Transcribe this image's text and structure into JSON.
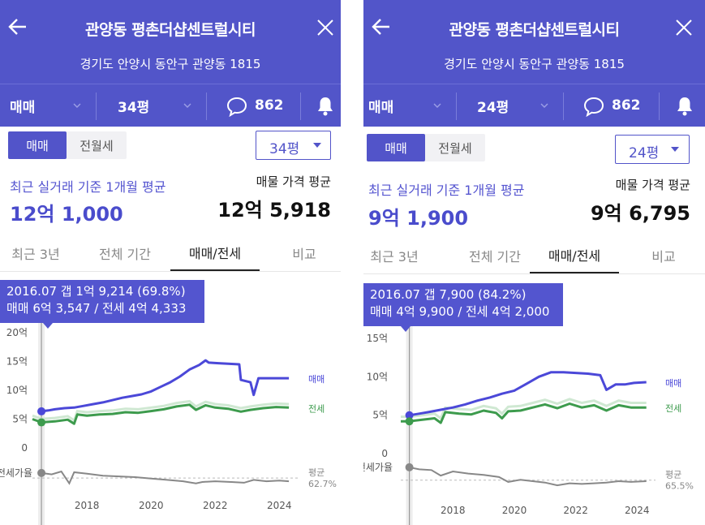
{
  "panels": [
    {
      "header": {
        "title": "관양동 평촌더샵센트럴시티",
        "address": "경기도 안양시 동안구 관양동 1815"
      },
      "subbar": {
        "deal_type": "매매",
        "size": "34평",
        "comment_count": "862"
      },
      "toggle": {
        "active": "매매",
        "inactive": "전월세"
      },
      "size_select": "34평",
      "recent": {
        "label": "최근 실거래 기준 1개월 평균",
        "value": "12억 1,000"
      },
      "listing": {
        "label": "매물 가격 평균",
        "value": "12억 5,918"
      },
      "tabs": [
        "최근 3년",
        "전체 기간",
        "매매/전세",
        "비교"
      ],
      "active_tab": 2,
      "tooltip": {
        "line1": "2016.07  갭 1억 9,214 (69.8%)",
        "line2": "매매 6억 3,547 / 전세 4억 4,333"
      },
      "legend": {
        "sale": "매매",
        "jeonse": "전세"
      },
      "ratio": {
        "label": "전세가율",
        "avg_label": "평균",
        "avg_value": "62.7%"
      },
      "colors": {
        "sale": "#4b48d8",
        "jeonse": "#3d9b4d",
        "ratio": "#888888"
      },
      "chart_data": {
        "type": "line",
        "x_unit": "year",
        "y_unit": "억",
        "ylim": [
          0,
          20
        ],
        "y_ticks": [
          {
            "v": 0,
            "label": "0"
          },
          {
            "v": 5,
            "label": "5억"
          },
          {
            "v": 10,
            "label": "10억"
          },
          {
            "v": 15,
            "label": "15억"
          },
          {
            "v": 20,
            "label": "20억"
          }
        ],
        "x_ticks": [
          2018,
          2020,
          2022,
          2024
        ],
        "xlim": [
          2016.3,
          2024.6
        ],
        "series": [
          {
            "name": "매매",
            "points": [
              [
                2016.58,
                6.35
              ],
              [
                2016.8,
                6.5
              ],
              [
                2017.0,
                6.7
              ],
              [
                2017.3,
                6.9
              ],
              [
                2017.6,
                7.0
              ],
              [
                2017.9,
                7.3
              ],
              [
                2018.2,
                7.6
              ],
              [
                2018.5,
                7.9
              ],
              [
                2018.8,
                8.3
              ],
              [
                2019.1,
                8.7
              ],
              [
                2019.4,
                9.0
              ],
              [
                2019.7,
                9.3
              ],
              [
                2020.0,
                9.8
              ],
              [
                2020.3,
                10.6
              ],
              [
                2020.6,
                11.4
              ],
              [
                2020.9,
                12.4
              ],
              [
                2021.2,
                13.6
              ],
              [
                2021.5,
                14.4
              ],
              [
                2021.7,
                15.2
              ],
              [
                2021.8,
                14.8
              ],
              [
                2022.1,
                14.7
              ],
              [
                2022.4,
                14.6
              ],
              [
                2022.75,
                14.5
              ],
              [
                2022.8,
                11.8
              ],
              [
                2023.1,
                11.4
              ],
              [
                2023.2,
                9.2
              ],
              [
                2023.35,
                12.1
              ],
              [
                2023.8,
                12.1
              ],
              [
                2024.3,
                12.1
              ]
            ]
          },
          {
            "name": "전세",
            "points": [
              [
                2016.3,
                5.0
              ],
              [
                2016.58,
                4.43
              ],
              [
                2017.0,
                4.6
              ],
              [
                2017.4,
                4.9
              ],
              [
                2017.6,
                4.2
              ],
              [
                2017.7,
                5.8
              ],
              [
                2018.0,
                5.6
              ],
              [
                2018.4,
                5.8
              ],
              [
                2018.8,
                5.9
              ],
              [
                2019.2,
                6.2
              ],
              [
                2019.6,
                6.1
              ],
              [
                2020.0,
                6.4
              ],
              [
                2020.4,
                6.7
              ],
              [
                2020.8,
                7.2
              ],
              [
                2021.2,
                7.5
              ],
              [
                2021.4,
                6.6
              ],
              [
                2021.7,
                7.4
              ],
              [
                2022.0,
                7.0
              ],
              [
                2022.4,
                6.8
              ],
              [
                2022.8,
                6.3
              ],
              [
                2023.1,
                6.6
              ],
              [
                2023.5,
                6.9
              ],
              [
                2023.9,
                7.1
              ],
              [
                2024.3,
                7.0
              ]
            ]
          },
          {
            "name": "전세가율",
            "points": [
              [
                2016.58,
                70
              ],
              [
                2016.9,
                68
              ],
              [
                2017.2,
                72
              ],
              [
                2017.45,
                55
              ],
              [
                2017.6,
                71
              ],
              [
                2018.0,
                69
              ],
              [
                2018.5,
                66
              ],
              [
                2019.0,
                65
              ],
              [
                2019.5,
                64
              ],
              [
                2020.0,
                62
              ],
              [
                2020.5,
                60
              ],
              [
                2021.0,
                58
              ],
              [
                2021.4,
                55
              ],
              [
                2021.6,
                57
              ],
              [
                2022.0,
                58
              ],
              [
                2022.5,
                57
              ],
              [
                2022.9,
                56
              ],
              [
                2023.2,
                60
              ],
              [
                2023.6,
                58
              ],
              [
                2024.0,
                59
              ],
              [
                2024.3,
                58
              ]
            ]
          }
        ],
        "ratio_average": 62.7,
        "highlight_x": 2016.58
      }
    },
    {
      "header": {
        "title": "관양동 평촌더샵센트럴시티",
        "address": "경기도 안양시 동안구 관양동 1815"
      },
      "subbar": {
        "deal_type": "매매",
        "size": "24평",
        "comment_count": "862"
      },
      "toggle": {
        "active": "매매",
        "inactive": "전월세"
      },
      "size_select": "24평",
      "recent": {
        "label": "최근 실거래 기준 1개월 평균",
        "value": "9억 1,900"
      },
      "listing": {
        "label": "매물 가격 평균",
        "value": "9억 6,795"
      },
      "tabs": [
        "최근 3년",
        "전체 기간",
        "매매/전세",
        "비교"
      ],
      "active_tab": 2,
      "tooltip": {
        "line1": "2016.07  갭 7,900 (84.2%)",
        "line2": "매매 4억 9,900 / 전세 4억 2,000"
      },
      "legend": {
        "sale": "매매",
        "jeonse": "전세"
      },
      "ratio": {
        "label": "전세가율",
        "avg_label": "평균",
        "avg_value": "65.5%"
      },
      "colors": {
        "sale": "#4b48d8",
        "jeonse": "#3d9b4d",
        "ratio": "#888888"
      },
      "chart_data": {
        "type": "line",
        "x_unit": "year",
        "y_unit": "억",
        "ylim": [
          0,
          15
        ],
        "y_ticks": [
          {
            "v": 0,
            "label": "0"
          },
          {
            "v": 5,
            "label": "5억"
          },
          {
            "v": 10,
            "label": "10억"
          },
          {
            "v": 15,
            "label": "15억"
          }
        ],
        "x_ticks": [
          2018,
          2020,
          2022,
          2024
        ],
        "xlim": [
          2016.3,
          2024.6
        ],
        "series": [
          {
            "name": "매매",
            "points": [
              [
                2016.58,
                4.99
              ],
              [
                2016.9,
                5.2
              ],
              [
                2017.2,
                5.4
              ],
              [
                2017.6,
                5.7
              ],
              [
                2018.0,
                6.0
              ],
              [
                2018.4,
                6.4
              ],
              [
                2018.8,
                6.9
              ],
              [
                2019.2,
                7.3
              ],
              [
                2019.6,
                7.8
              ],
              [
                2020.0,
                8.2
              ],
              [
                2020.4,
                9.1
              ],
              [
                2020.8,
                10.0
              ],
              [
                2021.2,
                10.6
              ],
              [
                2021.6,
                10.6
              ],
              [
                2022.0,
                10.5
              ],
              [
                2022.4,
                10.4
              ],
              [
                2022.8,
                10.2
              ],
              [
                2023.0,
                8.3
              ],
              [
                2023.3,
                9.0
              ],
              [
                2023.6,
                9.0
              ],
              [
                2023.9,
                9.2
              ],
              [
                2024.3,
                9.3
              ]
            ]
          },
          {
            "name": "전세",
            "points": [
              [
                2016.3,
                4.2
              ],
              [
                2016.58,
                4.2
              ],
              [
                2017.0,
                4.4
              ],
              [
                2017.4,
                4.6
              ],
              [
                2017.6,
                4.0
              ],
              [
                2017.75,
                5.4
              ],
              [
                2018.2,
                5.2
              ],
              [
                2018.6,
                5.1
              ],
              [
                2019.0,
                5.6
              ],
              [
                2019.4,
                5.3
              ],
              [
                2019.6,
                4.6
              ],
              [
                2019.8,
                5.5
              ],
              [
                2020.2,
                5.6
              ],
              [
                2020.6,
                6.0
              ],
              [
                2021.0,
                6.4
              ],
              [
                2021.4,
                5.9
              ],
              [
                2021.8,
                6.5
              ],
              [
                2022.2,
                6.0
              ],
              [
                2022.6,
                6.3
              ],
              [
                2023.0,
                5.6
              ],
              [
                2023.4,
                6.3
              ],
              [
                2023.8,
                6.0
              ],
              [
                2024.3,
                6.0
              ]
            ]
          },
          {
            "name": "전세가율",
            "points": [
              [
                2016.58,
                84
              ],
              [
                2016.9,
                81
              ],
              [
                2017.3,
                80
              ],
              [
                2017.6,
                72
              ],
              [
                2018.0,
                78
              ],
              [
                2018.5,
                75
              ],
              [
                2019.0,
                73
              ],
              [
                2019.5,
                70
              ],
              [
                2019.8,
                63
              ],
              [
                2020.2,
                66
              ],
              [
                2020.6,
                64
              ],
              [
                2021.0,
                62
              ],
              [
                2021.4,
                58
              ],
              [
                2021.8,
                61
              ],
              [
                2022.2,
                60
              ],
              [
                2022.6,
                61
              ],
              [
                2023.0,
                62
              ],
              [
                2023.4,
                64
              ],
              [
                2023.8,
                63
              ],
              [
                2024.3,
                64
              ]
            ]
          }
        ],
        "ratio_average": 65.5,
        "highlight_x": 2016.58
      }
    }
  ]
}
